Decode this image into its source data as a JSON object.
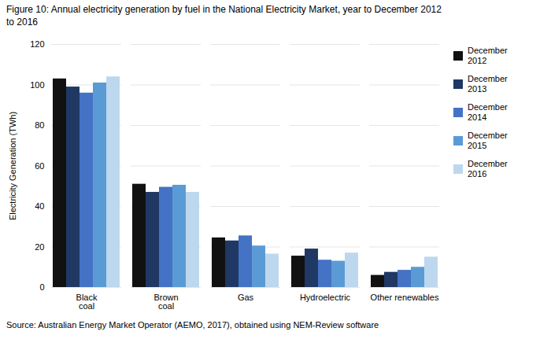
{
  "chart_data": {
    "type": "bar",
    "title": "Figure 10: Annual electricity generation by fuel in the National Electricity Market, year to December 2012\nto 2016",
    "source": "Source: Australian Energy Market Operator (AEMO, 2017), obtained using NEM-Review software",
    "categories": [
      "Black\ncoal",
      "Brown\ncoal",
      "Gas",
      "Hydroelectric",
      "Other renewables"
    ],
    "series": [
      {
        "name": "December\n2012",
        "color": "#111111",
        "values": [
          103,
          51,
          24.5,
          15.5,
          6
        ]
      },
      {
        "name": "December\n2013",
        "color": "#1f3864",
        "values": [
          99,
          47,
          23,
          19,
          7.5
        ]
      },
      {
        "name": "December\n2014",
        "color": "#4472c4",
        "values": [
          96,
          49.5,
          25.5,
          13.5,
          8.5
        ]
      },
      {
        "name": "December\n2015",
        "color": "#5b9bd5",
        "values": [
          101,
          50.5,
          20.5,
          13,
          10
        ]
      },
      {
        "name": "December\n2016",
        "color": "#bdd7ee",
        "values": [
          104,
          47,
          16.5,
          17,
          15
        ]
      }
    ],
    "ylabel": "Electricity Generation (TWh)",
    "ylim": [
      0,
      120
    ],
    "yticks": [
      0,
      20,
      40,
      60,
      80,
      100,
      120
    ],
    "grid": true,
    "legend": "right"
  }
}
